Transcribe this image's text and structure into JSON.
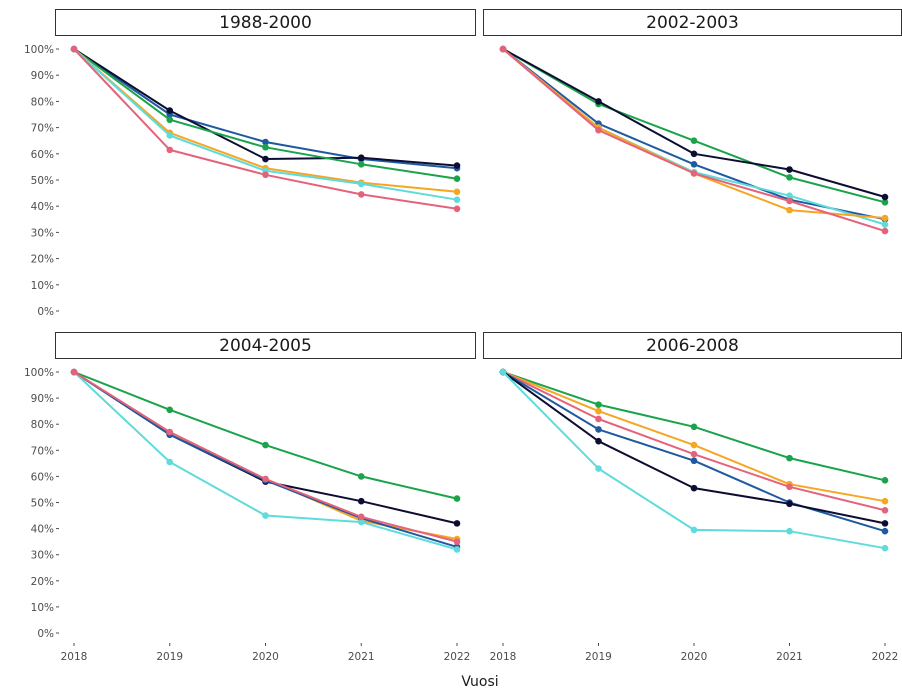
{
  "chart_data": {
    "type": "line",
    "layout": "facet-2x2",
    "xlabel": "Vuosi",
    "ylabel": "",
    "x": [
      2018,
      2019,
      2020,
      2021,
      2022
    ],
    "x_tick_labels": [
      "2018",
      "2019",
      "2020",
      "2021",
      "2022"
    ],
    "ylim": [
      0,
      100
    ],
    "y_ticks": [
      0,
      10,
      20,
      30,
      40,
      50,
      60,
      70,
      80,
      90,
      100
    ],
    "y_tick_labels": [
      "0%",
      "10%",
      "20%",
      "30%",
      "40%",
      "50%",
      "60%",
      "70%",
      "80%",
      "90%",
      "100%"
    ],
    "legend": "none",
    "grid": false,
    "colors": {
      "dark": "#0d0d33",
      "blue": "#1f5aa0",
      "green": "#1aa34a",
      "orange": "#f5a623",
      "cyan": "#5fdbdc",
      "pink": "#e5637a"
    },
    "panels": [
      {
        "title": "1988-2000",
        "series": [
          {
            "color": "blue",
            "values": [
              100,
              75,
              64.5,
              58,
              54.5
            ]
          },
          {
            "color": "dark",
            "values": [
              100,
              76.5,
              58,
              58.5,
              55.5
            ]
          },
          {
            "color": "green",
            "values": [
              100,
              73,
              62.5,
              56,
              50.5
            ]
          },
          {
            "color": "orange",
            "values": [
              100,
              68,
              54.5,
              49,
              45.5
            ]
          },
          {
            "color": "cyan",
            "values": [
              100,
              67,
              53.5,
              48.5,
              42.5
            ]
          },
          {
            "color": "pink",
            "values": [
              100,
              61.5,
              52,
              44.5,
              39
            ]
          }
        ]
      },
      {
        "title": "2002-2003",
        "series": [
          {
            "color": "green",
            "values": [
              100,
              79,
              65,
              51,
              41.5
            ]
          },
          {
            "color": "dark",
            "values": [
              100,
              80,
              60,
              54,
              43.5
            ]
          },
          {
            "color": "blue",
            "values": [
              100,
              71.5,
              56,
              42.5,
              35
            ]
          },
          {
            "color": "cyan",
            "values": [
              100,
              70,
              53,
              44,
              33
            ]
          },
          {
            "color": "orange",
            "values": [
              100,
              70,
              52.5,
              38.5,
              35.5
            ]
          },
          {
            "color": "pink",
            "values": [
              100,
              69,
              52.5,
              42,
              30.5
            ]
          }
        ]
      },
      {
        "title": "2004-2005",
        "series": [
          {
            "color": "green",
            "values": [
              100,
              85.5,
              72,
              60,
              51.5
            ]
          },
          {
            "color": "dark",
            "values": [
              100,
              76,
              58,
              50.5,
              42
            ]
          },
          {
            "color": "orange",
            "values": [
              100,
              76.5,
              59,
              43,
              36
            ]
          },
          {
            "color": "blue",
            "values": [
              100,
              76,
              58.5,
              44,
              33
            ]
          },
          {
            "color": "cyan",
            "values": [
              100,
              65.5,
              45,
              42.5,
              32
            ]
          },
          {
            "color": "pink",
            "values": [
              100,
              77,
              59,
              44.5,
              35
            ]
          }
        ]
      },
      {
        "title": "2006-2008",
        "series": [
          {
            "color": "green",
            "values": [
              100,
              87.5,
              79,
              67,
              58.5
            ]
          },
          {
            "color": "orange",
            "values": [
              100,
              85,
              72,
              57,
              50.5
            ]
          },
          {
            "color": "pink",
            "values": [
              100,
              82,
              68.5,
              56,
              47
            ]
          },
          {
            "color": "blue",
            "values": [
              100,
              78,
              66,
              50,
              39
            ]
          },
          {
            "color": "dark",
            "values": [
              100,
              73.5,
              55.5,
              49.5,
              42
            ]
          },
          {
            "color": "cyan",
            "values": [
              100,
              63,
              39.5,
              39,
              32.5
            ]
          }
        ]
      }
    ]
  }
}
